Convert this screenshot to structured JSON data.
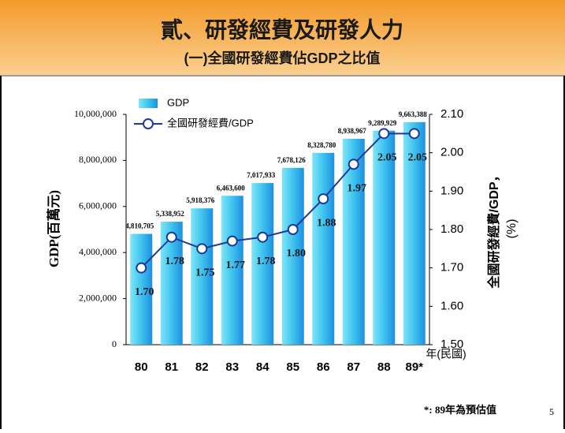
{
  "header": {
    "title": "貳、研發經費及研發人力",
    "subtitle": "(一)全國研發經費佔GDP之比值"
  },
  "footnote": "*: 89年為預估值",
  "page_number": "5",
  "chart_data": {
    "type": "combo",
    "categories": [
      "80",
      "81",
      "82",
      "83",
      "84",
      "85",
      "86",
      "87",
      "88",
      "89*"
    ],
    "series": [
      {
        "name": "GDP",
        "type": "bar",
        "color": "#1e8fe0",
        "axis": "y",
        "values": [
          4810705,
          5338952,
          5918376,
          6463600,
          7017933,
          7678126,
          8328780,
          8938967,
          9289929,
          9663388
        ],
        "value_labels": [
          "4,810,705",
          "5,338,952",
          "5,918,376",
          "6,463,600",
          "7,017,933",
          "7,678,126",
          "8,328,780",
          "8,938,967",
          "9,289,929",
          "9,663,388"
        ]
      },
      {
        "name": "全國研發經費/GDP",
        "type": "line",
        "color": "#1f3a93",
        "axis": "y2",
        "values": [
          1.7,
          1.78,
          1.75,
          1.77,
          1.78,
          1.8,
          1.88,
          1.97,
          2.05,
          2.05
        ],
        "value_labels": [
          "1.70",
          "1.78",
          "1.75",
          "1.77",
          "1.78",
          "1.80",
          "1.88",
          "1.97",
          "2.05",
          "2.05"
        ]
      }
    ],
    "ylabel": "GDP(百萬元)",
    "y2label": [
      "全國研發經費/GDP，",
      "(%)"
    ],
    "xlabel": "年(民國)",
    "ylim": [
      0,
      10000000
    ],
    "yticks": [
      0,
      {
        "value": 2000000,
        "label": "2,000,000"
      },
      {
        "value": 4000000,
        "label": "4,000,000"
      },
      {
        "value": 6000000,
        "label": "6,000,000"
      },
      {
        "value": 8000000,
        "label": "8,000,000"
      },
      {
        "value": 10000000,
        "label": "10,000,000"
      }
    ],
    "y2lim": [
      1.5,
      2.1
    ],
    "y2ticks": [
      {
        "value": 1.5,
        "label": "1.50"
      },
      {
        "value": 1.6,
        "label": "1.60"
      },
      {
        "value": 1.7,
        "label": "1.70"
      },
      {
        "value": 1.8,
        "label": "1.80"
      },
      {
        "value": 1.9,
        "label": "1.90"
      },
      {
        "value": 2.0,
        "label": "2.00"
      },
      {
        "value": 2.1,
        "label": "2.10"
      }
    ],
    "legend": "top-left"
  }
}
